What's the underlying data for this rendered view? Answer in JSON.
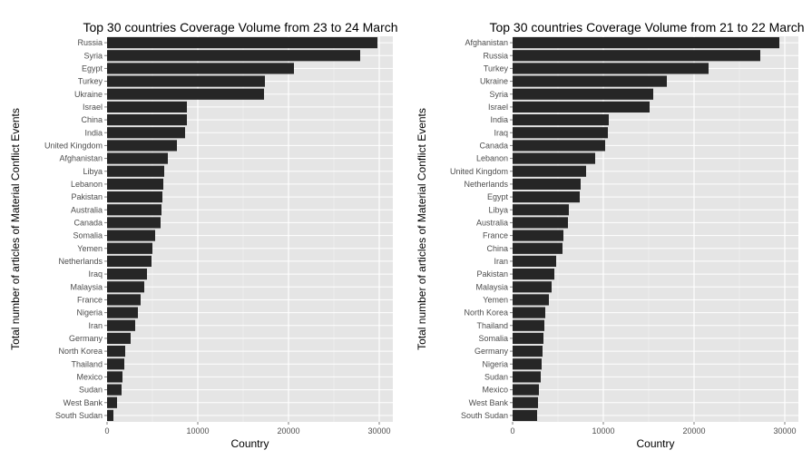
{
  "chart_data": [
    {
      "type": "bar",
      "orientation": "horizontal",
      "title": "Top 30 countries Coverage Volume from 23 to 24 March",
      "xlabel": "Country",
      "ylabel": "Total number of articles of Material Conflict Events",
      "xlim": [
        0,
        31500
      ],
      "x_ticks": [
        0,
        10000,
        20000,
        30000
      ],
      "categories": [
        "Russia",
        "Syria",
        "Egypt",
        "Turkey",
        "Ukraine",
        "Israel",
        "China",
        "India",
        "United Kingdom",
        "Afghanistan",
        "Libya",
        "Lebanon",
        "Pakistan",
        "Australia",
        "Canada",
        "Somalia",
        "Yemen",
        "Netherlands",
        "Iraq",
        "Malaysia",
        "France",
        "Nigeria",
        "Iran",
        "Germany",
        "North Korea",
        "Thailand",
        "Mexico",
        "Sudan",
        "West Bank",
        "South Sudan"
      ],
      "values": [
        29800,
        27900,
        20600,
        17400,
        17300,
        8800,
        8800,
        8600,
        7700,
        6700,
        6300,
        6200,
        6100,
        6000,
        5900,
        5300,
        5000,
        4900,
        4400,
        4100,
        3700,
        3400,
        3100,
        2600,
        2000,
        1900,
        1700,
        1600,
        1100,
        700
      ],
      "bar_color": "#262626",
      "panel_color": "#e5e5e5",
      "grid_color": "#ffffff"
    },
    {
      "type": "bar",
      "orientation": "horizontal",
      "title": "Top 30 countries Coverage Volume from 21 to 22 March",
      "xlabel": "Country",
      "ylabel": "Total number of articles of Material Conflict Events",
      "xlim": [
        0,
        31500
      ],
      "x_ticks": [
        0,
        10000,
        20000,
        30000
      ],
      "categories": [
        "Afghanistan",
        "Russia",
        "Turkey",
        "Ukraine",
        "Syria",
        "Israel",
        "India",
        "Iraq",
        "Canada",
        "Lebanon",
        "United Kingdom",
        "Netherlands",
        "Egypt",
        "Libya",
        "Australia",
        "France",
        "China",
        "Iran",
        "Pakistan",
        "Malaysia",
        "Yemen",
        "North Korea",
        "Thailand",
        "Somalia",
        "Germany",
        "Nigeria",
        "Sudan",
        "Mexico",
        "West Bank",
        "South Sudan"
      ],
      "values": [
        29400,
        27300,
        21600,
        17000,
        15500,
        15100,
        10600,
        10500,
        10200,
        9100,
        8100,
        7500,
        7400,
        6200,
        6100,
        5600,
        5500,
        4800,
        4600,
        4300,
        4000,
        3600,
        3500,
        3400,
        3300,
        3200,
        3100,
        2900,
        2800,
        2700
      ],
      "bar_color": "#262626",
      "panel_color": "#e5e5e5",
      "grid_color": "#ffffff"
    }
  ]
}
